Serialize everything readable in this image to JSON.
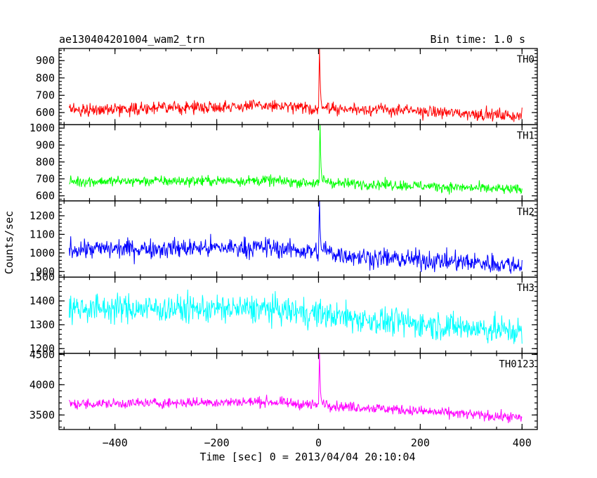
{
  "chart_data": {
    "type": "line",
    "title": "ae130404201004_wam2_trn",
    "subtitle": "Bin time: 1.0 s",
    "xlabel": "Time [sec] 0 = 2013/04/04 20:10:04",
    "ylabel": "Counts/sec",
    "xlim": [
      -510,
      430
    ],
    "x_ticks": [
      -400,
      -200,
      0,
      200,
      400
    ],
    "x_tick_labels": [
      "−400",
      "−200",
      "0",
      "200",
      "400"
    ],
    "grid": false,
    "series": [
      {
        "name": "TH0",
        "color": "#ff0000",
        "ylim": [
          530,
          970
        ],
        "yticks": [
          600,
          700,
          800,
          900
        ],
        "profile": [
          [
            -490,
            615
          ],
          [
            -100,
            640
          ],
          [
            0,
            620
          ],
          [
            100,
            620
          ],
          [
            400,
            580
          ]
        ],
        "noise": 25,
        "spike": {
          "x": 2,
          "y": 970
        }
      },
      {
        "name": "TH1",
        "color": "#00ff00",
        "ylim": [
          570,
          1020
        ],
        "yticks": [
          600,
          700,
          800,
          900,
          1000
        ],
        "profile": [
          [
            -490,
            685
          ],
          [
            -100,
            690
          ],
          [
            0,
            675
          ],
          [
            100,
            670
          ],
          [
            400,
            635
          ]
        ],
        "noise": 22,
        "spike": {
          "x": 3,
          "y": 1020
        }
      },
      {
        "name": "TH2",
        "color": "#0000ff",
        "ylim": [
          870,
          1280
        ],
        "yticks": [
          900,
          1000,
          1100,
          1200
        ],
        "profile": [
          [
            -490,
            1020
          ],
          [
            -100,
            1030
          ],
          [
            0,
            1005
          ],
          [
            100,
            975
          ],
          [
            400,
            935
          ]
        ],
        "noise": 38,
        "spike": {
          "x": 2,
          "y": 1280
        }
      },
      {
        "name": "TH3",
        "color": "#00ffff",
        "ylim": [
          1180,
          1500
        ],
        "yticks": [
          1200,
          1300,
          1400,
          1500
        ],
        "profile": [
          [
            -490,
            1370
          ],
          [
            -100,
            1365
          ],
          [
            0,
            1345
          ],
          [
            100,
            1320
          ],
          [
            400,
            1270
          ]
        ],
        "noise": 42,
        "spike": null
      },
      {
        "name": "TH0123",
        "color": "#ff00ff",
        "ylim": [
          3260,
          4520
        ],
        "yticks": [
          3500,
          4000,
          4500
        ],
        "profile": [
          [
            -490,
            3680
          ],
          [
            -100,
            3720
          ],
          [
            0,
            3660
          ],
          [
            100,
            3620
          ],
          [
            400,
            3450
          ]
        ],
        "noise": 60,
        "spike": {
          "x": 2,
          "y": 4520
        }
      }
    ]
  }
}
